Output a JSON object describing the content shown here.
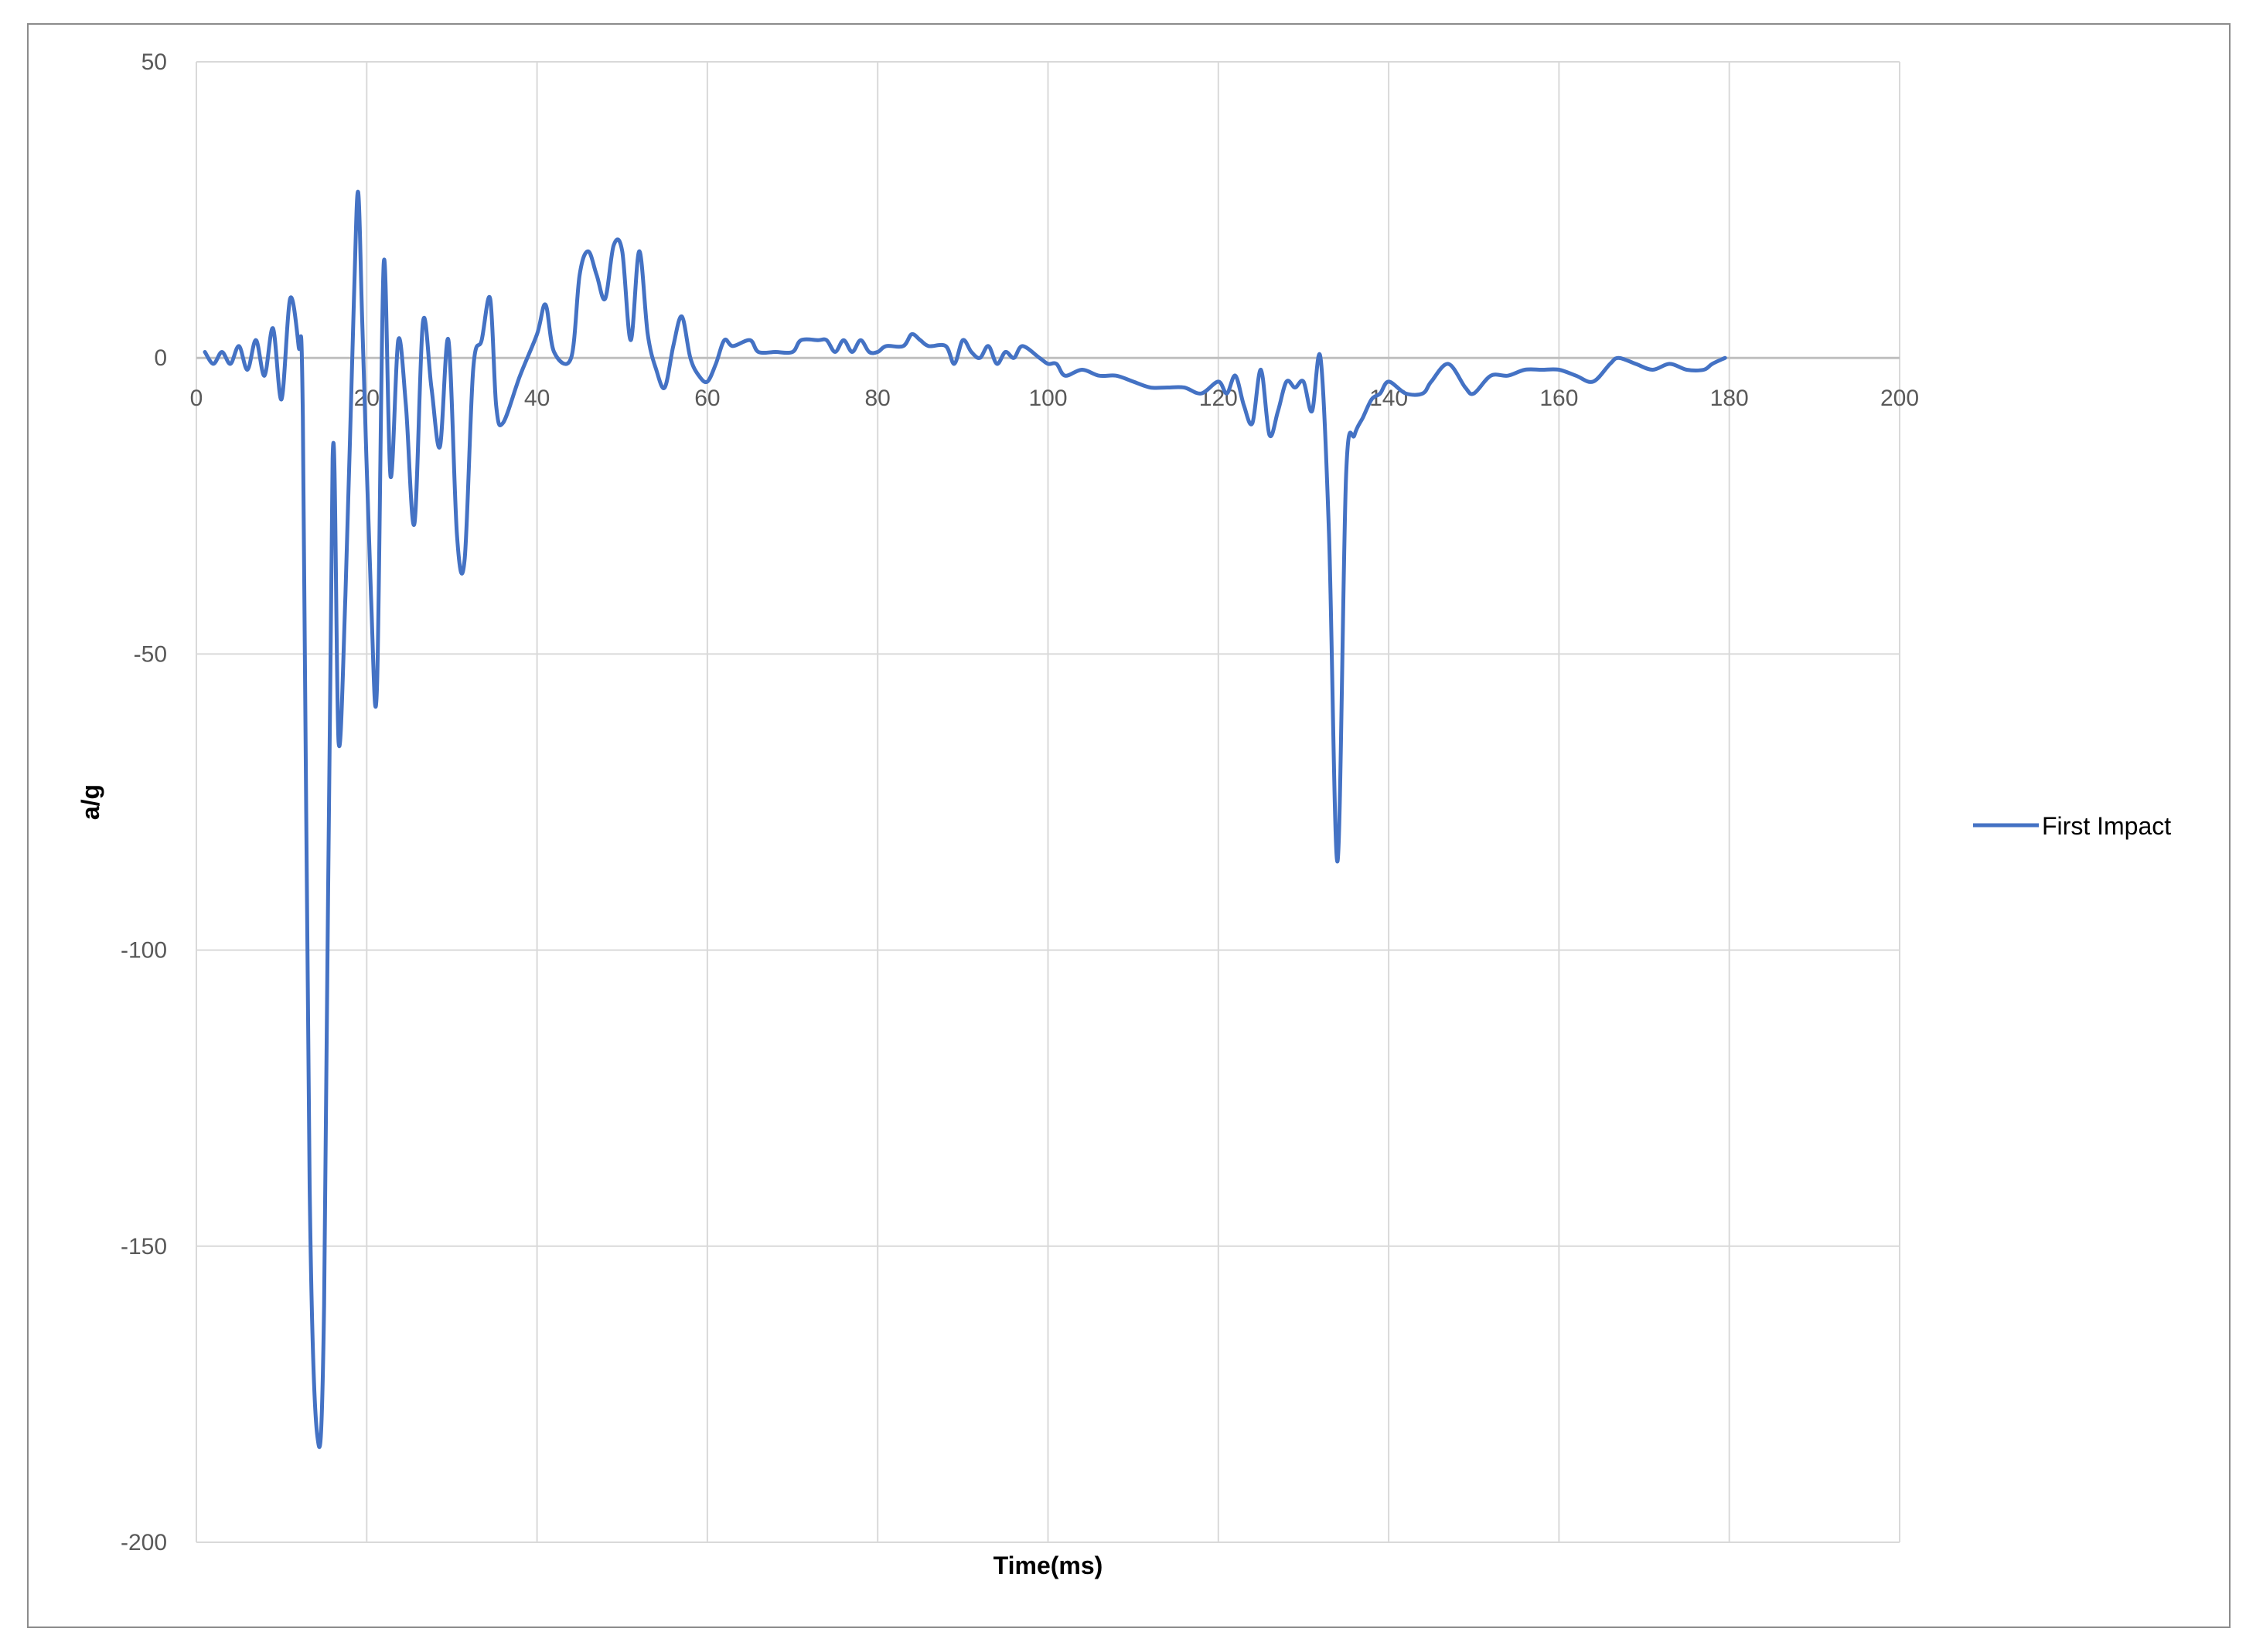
{
  "chart_data": {
    "type": "line",
    "title": "",
    "xlabel": "Time(ms)",
    "ylabel": "a/g",
    "xlim": [
      0,
      200
    ],
    "ylim": [
      -200,
      50
    ],
    "x_ticks": [
      0,
      20,
      40,
      60,
      80,
      100,
      120,
      140,
      160,
      180,
      200
    ],
    "y_ticks": [
      50,
      0,
      -50,
      -100,
      -150,
      -200
    ],
    "grid": true,
    "legend_position": "right",
    "series": [
      {
        "name": "First Impact",
        "color": "#4472C4",
        "points": [
          [
            1,
            1
          ],
          [
            2,
            -1
          ],
          [
            3,
            1
          ],
          [
            4,
            -1
          ],
          [
            5,
            2
          ],
          [
            6,
            -2
          ],
          [
            7,
            3
          ],
          [
            8,
            -3
          ],
          [
            9,
            5
          ],
          [
            10,
            -7
          ],
          [
            11,
            10
          ],
          [
            12,
            2
          ],
          [
            12.5,
            -10
          ],
          [
            13.3,
            -140
          ],
          [
            14.2,
            -182
          ],
          [
            15,
            -160
          ],
          [
            16,
            -17
          ],
          [
            16.7,
            -65
          ],
          [
            17.5,
            -40
          ],
          [
            18.5,
            10
          ],
          [
            19,
            28
          ],
          [
            19.5,
            5
          ],
          [
            20.5,
            -40
          ],
          [
            21.2,
            -56
          ],
          [
            22,
            16
          ],
          [
            22.8,
            -20
          ],
          [
            23.7,
            3
          ],
          [
            24.6,
            -8
          ],
          [
            25.6,
            -28
          ],
          [
            26.6,
            6
          ],
          [
            27.6,
            -5
          ],
          [
            28.6,
            -15
          ],
          [
            29.6,
            3
          ],
          [
            30.6,
            -30
          ],
          [
            31.5,
            -34
          ],
          [
            32.5,
            -2
          ],
          [
            33.5,
            3
          ],
          [
            34.5,
            10
          ],
          [
            35.2,
            -8
          ],
          [
            36,
            -11
          ],
          [
            38,
            -3
          ],
          [
            40,
            4
          ],
          [
            41,
            9
          ],
          [
            42,
            1
          ],
          [
            44,
            0
          ],
          [
            45,
            14
          ],
          [
            46,
            18
          ],
          [
            47,
            14
          ],
          [
            48,
            10
          ],
          [
            49,
            19
          ],
          [
            50,
            18
          ],
          [
            51,
            3
          ],
          [
            52,
            18
          ],
          [
            53,
            4
          ],
          [
            54,
            -2
          ],
          [
            55,
            -5
          ],
          [
            56,
            2
          ],
          [
            57,
            7
          ],
          [
            58,
            0
          ],
          [
            59,
            -3
          ],
          [
            60,
            -4
          ],
          [
            61,
            -1
          ],
          [
            62,
            3
          ],
          [
            63,
            2
          ],
          [
            65,
            3
          ],
          [
            66,
            1
          ],
          [
            68,
            1
          ],
          [
            70,
            1
          ],
          [
            71,
            3
          ],
          [
            73,
            3
          ],
          [
            74,
            3
          ],
          [
            75,
            1
          ],
          [
            76,
            3
          ],
          [
            77,
            1
          ],
          [
            78,
            3
          ],
          [
            79,
            1
          ],
          [
            80,
            1
          ],
          [
            81,
            2
          ],
          [
            83,
            2
          ],
          [
            84,
            4
          ],
          [
            85,
            3
          ],
          [
            86,
            2
          ],
          [
            88,
            2
          ],
          [
            89,
            -1
          ],
          [
            90,
            3
          ],
          [
            91,
            1
          ],
          [
            92,
            0
          ],
          [
            93,
            2
          ],
          [
            94,
            -1
          ],
          [
            95,
            1
          ],
          [
            96,
            0
          ],
          [
            97,
            2
          ],
          [
            99,
            0
          ],
          [
            100,
            -1
          ],
          [
            101,
            -1
          ],
          [
            102,
            -3
          ],
          [
            104,
            -2
          ],
          [
            106,
            -3
          ],
          [
            108,
            -3
          ],
          [
            110,
            -4
          ],
          [
            112,
            -5
          ],
          [
            114,
            -5
          ],
          [
            116,
            -5
          ],
          [
            118,
            -6
          ],
          [
            120,
            -4
          ],
          [
            121,
            -6
          ],
          [
            122,
            -3
          ],
          [
            123,
            -8
          ],
          [
            124,
            -11
          ],
          [
            125,
            -2
          ],
          [
            126,
            -13
          ],
          [
            127,
            -9
          ],
          [
            128,
            -4
          ],
          [
            129,
            -5
          ],
          [
            130,
            -4
          ],
          [
            131,
            -9
          ],
          [
            132,
            0
          ],
          [
            133,
            -30
          ],
          [
            134,
            -85
          ],
          [
            135,
            -20
          ],
          [
            136,
            -13
          ],
          [
            137,
            -10
          ],
          [
            138,
            -7
          ],
          [
            139,
            -6
          ],
          [
            140,
            -4
          ],
          [
            142,
            -6
          ],
          [
            144,
            -6
          ],
          [
            145,
            -4
          ],
          [
            147,
            -1
          ],
          [
            149,
            -5
          ],
          [
            150,
            -6
          ],
          [
            152,
            -3
          ],
          [
            154,
            -3
          ],
          [
            156,
            -2
          ],
          [
            158,
            -2
          ],
          [
            160,
            -2
          ],
          [
            162,
            -3
          ],
          [
            164,
            -4
          ],
          [
            166,
            -1
          ],
          [
            167,
            0
          ],
          [
            169,
            -1
          ],
          [
            171,
            -2
          ],
          [
            173,
            -1
          ],
          [
            175,
            -2
          ],
          [
            177,
            -2
          ],
          [
            178,
            -1
          ],
          [
            179.5,
            0
          ]
        ]
      }
    ]
  }
}
